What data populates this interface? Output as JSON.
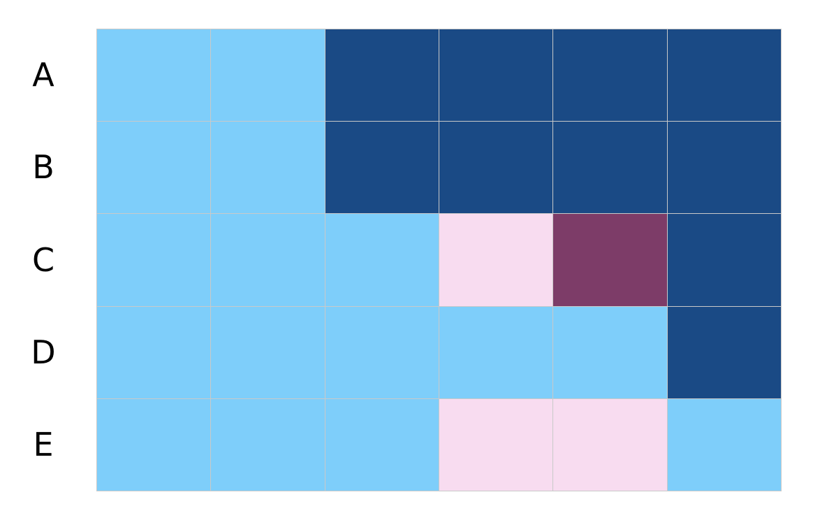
{
  "chart_data": {
    "type": "heatmap",
    "rows": [
      "A",
      "B",
      "C",
      "D",
      "E"
    ],
    "columns": [
      "",
      "",
      "",
      "",
      "",
      ""
    ],
    "values": [
      [
        "light-blue",
        "light-blue",
        "dark-blue",
        "dark-blue",
        "dark-blue",
        "dark-blue"
      ],
      [
        "light-blue",
        "light-blue",
        "dark-blue",
        "dark-blue",
        "dark-blue",
        "dark-blue"
      ],
      [
        "light-blue",
        "light-blue",
        "light-blue",
        "light-pink",
        "plum",
        "dark-blue"
      ],
      [
        "light-blue",
        "light-blue",
        "light-blue",
        "light-blue",
        "light-blue",
        "dark-blue"
      ],
      [
        "light-blue",
        "light-blue",
        "light-blue",
        "light-pink",
        "light-pink",
        "light-blue"
      ]
    ],
    "palette": {
      "light-blue": "#7ecefa",
      "dark-blue": "#1a4a85",
      "light-pink": "#f8dcf0",
      "plum": "#7d3c68"
    },
    "grid": true,
    "grid_color": "#c9c9c9",
    "legend": "none"
  }
}
